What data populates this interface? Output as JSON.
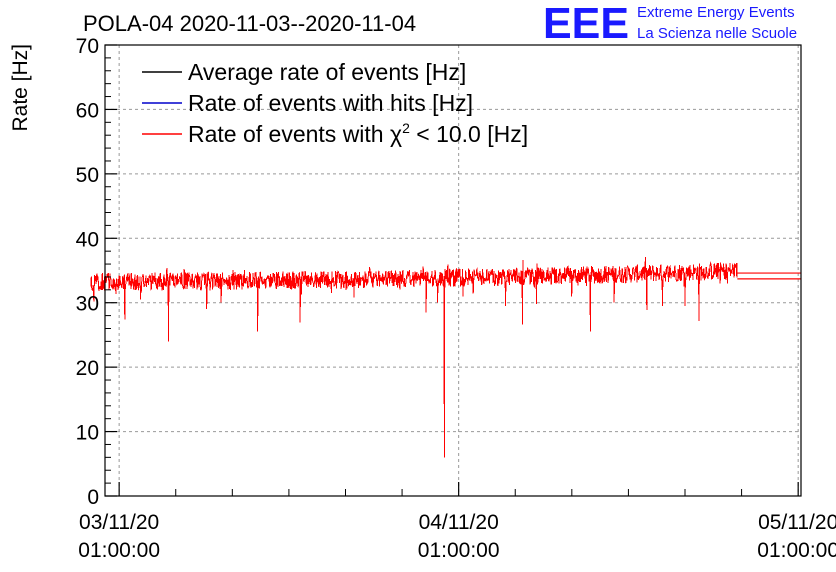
{
  "chart_data": {
    "type": "line",
    "title": "POLA-04 2020-11-03--2020-11-04",
    "ylabel": "Rate [Hz]",
    "xlabel": "",
    "ylim": [
      0,
      70
    ],
    "xlim_hours": [
      -1,
      48.2
    ],
    "grid": true,
    "yticks": [
      0,
      10,
      20,
      30,
      40,
      50,
      60,
      70
    ],
    "xticks": [
      {
        "hour": 0,
        "date": "03/11/20",
        "time": "01:00:00"
      },
      {
        "hour": 24,
        "date": "04/11/20",
        "time": "01:00:00"
      },
      {
        "hour": 48,
        "date": "05/11/20",
        "time": "01:00:00"
      }
    ],
    "legend_position": "top-left",
    "series": [
      {
        "name": "Average rate of events [Hz]",
        "color": "#000000"
      },
      {
        "name": "Rate of events with hits [Hz]",
        "color": "#0000cc"
      },
      {
        "name_prefix": "Rate of events with ",
        "name_symbol": "χ",
        "name_sup": "2",
        "name_suffix": " < 10.0 [Hz]",
        "color": "#ff0000"
      }
    ],
    "data_window_hours": [
      -2.0,
      43.7
    ],
    "baseline_rate": [
      {
        "hour": -2.0,
        "value": 33.2
      },
      {
        "hour": 18.0,
        "value": 33.6
      },
      {
        "hour": 25.0,
        "value": 33.9
      },
      {
        "hour": 35.0,
        "value": 34.4
      },
      {
        "hour": 43.7,
        "value": 35.0
      }
    ],
    "noise_band_hz": 1.4,
    "dips": [
      {
        "hour": -1.8,
        "value": 30.2
      },
      {
        "hour": -1.0,
        "value": 31.0
      },
      {
        "hour": 0.4,
        "value": 27.4
      },
      {
        "hour": 1.5,
        "value": 30.5
      },
      {
        "hour": 3.5,
        "value": 24.0
      },
      {
        "hour": 6.2,
        "value": 29.0
      },
      {
        "hour": 7.2,
        "value": 30.0
      },
      {
        "hour": 9.8,
        "value": 25.5
      },
      {
        "hour": 12.8,
        "value": 26.9
      },
      {
        "hour": 15.0,
        "value": 31.5
      },
      {
        "hour": 16.6,
        "value": 30.8
      },
      {
        "hour": 18.4,
        "value": 32.5
      },
      {
        "hour": 21.7,
        "value": 28.5
      },
      {
        "hour": 22.5,
        "value": 30.0
      },
      {
        "hour": 23.0,
        "value": 6.0
      },
      {
        "hour": 24.3,
        "value": 31.0
      },
      {
        "hour": 27.3,
        "value": 29.5
      },
      {
        "hour": 28.5,
        "value": 26.6
      },
      {
        "hour": 29.5,
        "value": 29.8
      },
      {
        "hour": 32.0,
        "value": 31.0
      },
      {
        "hour": 33.3,
        "value": 25.5
      },
      {
        "hour": 35.0,
        "value": 30.0
      },
      {
        "hour": 37.3,
        "value": 28.9
      },
      {
        "hour": 38.4,
        "value": 29.5
      },
      {
        "hour": 40.0,
        "value": 29.5
      },
      {
        "hour": 41.0,
        "value": 27.2
      },
      {
        "hour": 43.0,
        "value": 33.0
      }
    ],
    "trailing_segments": [
      {
        "from_hour": 43.7,
        "to_hour": 48.2,
        "value": 33.7
      },
      {
        "from_hour": 43.7,
        "to_hour": 48.2,
        "value": 34.6
      }
    ]
  },
  "logo": {
    "letters": "EEE",
    "line1": "Extreme Energy Events",
    "line2": "La Scienza nelle Scuole"
  }
}
